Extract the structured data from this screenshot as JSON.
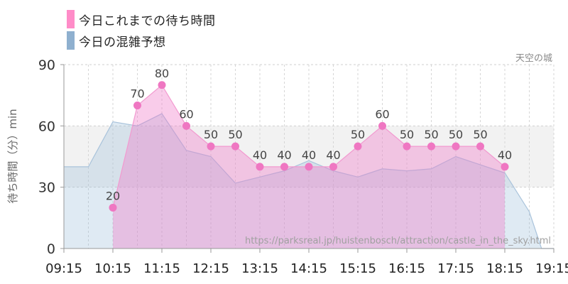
{
  "legend": {
    "items": [
      {
        "label": "今日これまでの待ち時間",
        "color": "#ff8cc8"
      },
      {
        "label": "今日の混雑予想",
        "color": "#8fb0cf"
      }
    ]
  },
  "attraction_name": "天空の城",
  "source_url": "https://parksreal.jp/huistenbosch/attraction/castle_in_the_sky.html",
  "chart_data": {
    "type": "area",
    "xlabel": "",
    "ylabel": "待ち時間（分）min",
    "ylim": [
      0,
      90
    ],
    "yticks": [
      0,
      30,
      60,
      90
    ],
    "xlim": [
      "09:15",
      "19:15"
    ],
    "xticks": [
      "09:15",
      "10:15",
      "11:15",
      "12:15",
      "13:15",
      "14:15",
      "15:15",
      "16:15",
      "17:15",
      "18:15",
      "19:15"
    ],
    "grid": true,
    "legend_position": "top-left",
    "highlight_band": [
      30,
      60
    ],
    "series": [
      {
        "name": "今日これまでの待ち時間",
        "color": "#ff8cc8",
        "x": [
          "10:15",
          "10:45",
          "11:15",
          "11:45",
          "12:15",
          "12:45",
          "13:15",
          "13:45",
          "14:15",
          "14:45",
          "15:15",
          "15:45",
          "16:15",
          "16:45",
          "17:15",
          "17:45",
          "18:15"
        ],
        "values": [
          20,
          70,
          80,
          60,
          50,
          50,
          40,
          40,
          40,
          40,
          50,
          60,
          50,
          50,
          50,
          50,
          40
        ],
        "labels": [
          "20",
          "70",
          "80",
          "60",
          "50",
          "50",
          "40",
          "40",
          "40",
          "40",
          "50",
          "60",
          "50",
          "50",
          "50",
          "50",
          "40"
        ]
      },
      {
        "name": "今日の混雑予想",
        "color": "#8fb0cf",
        "x": [
          "09:15",
          "09:45",
          "10:15",
          "10:45",
          "11:15",
          "11:45",
          "12:15",
          "12:45",
          "13:15",
          "13:45",
          "14:15",
          "14:45",
          "15:15",
          "15:45",
          "16:15",
          "16:45",
          "17:15",
          "17:45",
          "18:15",
          "18:45",
          "19:00",
          "19:15"
        ],
        "values": [
          40,
          40,
          62,
          60,
          66,
          48,
          45,
          32,
          35,
          38,
          43,
          38,
          35,
          39,
          38,
          39,
          45,
          41,
          37,
          18,
          0,
          0
        ]
      }
    ]
  }
}
